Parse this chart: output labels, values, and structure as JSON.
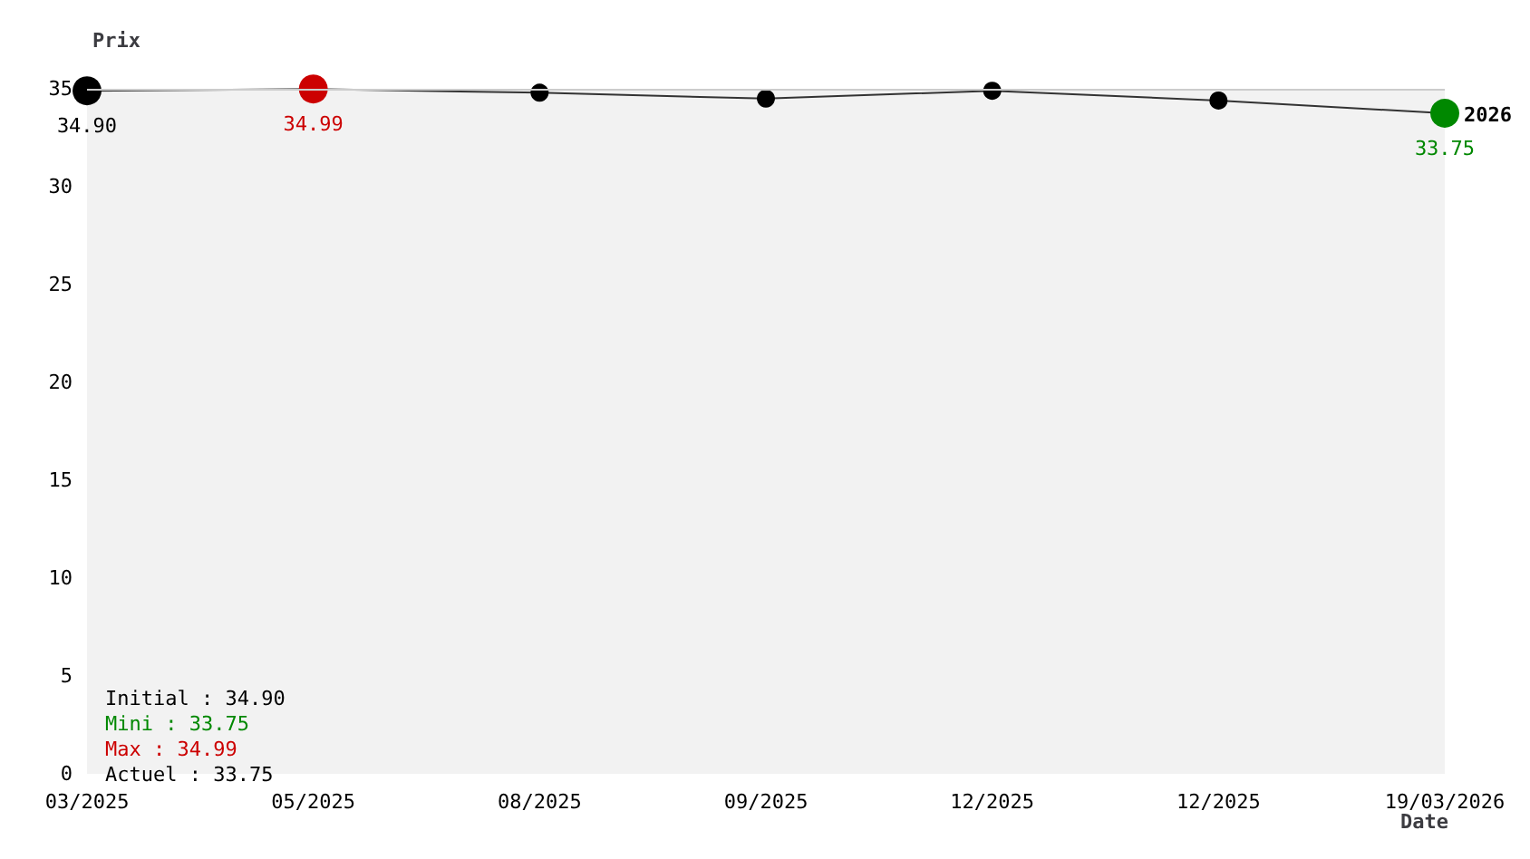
{
  "chart_data": {
    "type": "line",
    "xlabel": "Date",
    "ylabel": "Prix",
    "categories": [
      "03/2025",
      "05/2025",
      "08/2025",
      "09/2025",
      "12/2025",
      "12/2025",
      "19/03/2026"
    ],
    "values": [
      34.9,
      34.99,
      34.8,
      34.5,
      34.9,
      34.4,
      33.75
    ],
    "colors": [
      "#000000",
      "#cc0000",
      "#000000",
      "#000000",
      "#000000",
      "#000000",
      "#008800"
    ],
    "value_labels": [
      "34.90",
      "34.99",
      null,
      null,
      null,
      null,
      "33.75"
    ],
    "color": "#333333",
    "marker": "circle",
    "grid": false,
    "ylim": [
      0,
      35
    ],
    "yticks": [
      0,
      5,
      10,
      15,
      20,
      25,
      30,
      35
    ],
    "annotations": [
      "Initial : 34.90",
      "Mini : 33.75",
      "Max : 34.99",
      "Actuel : 33.75",
      "2026"
    ]
  }
}
